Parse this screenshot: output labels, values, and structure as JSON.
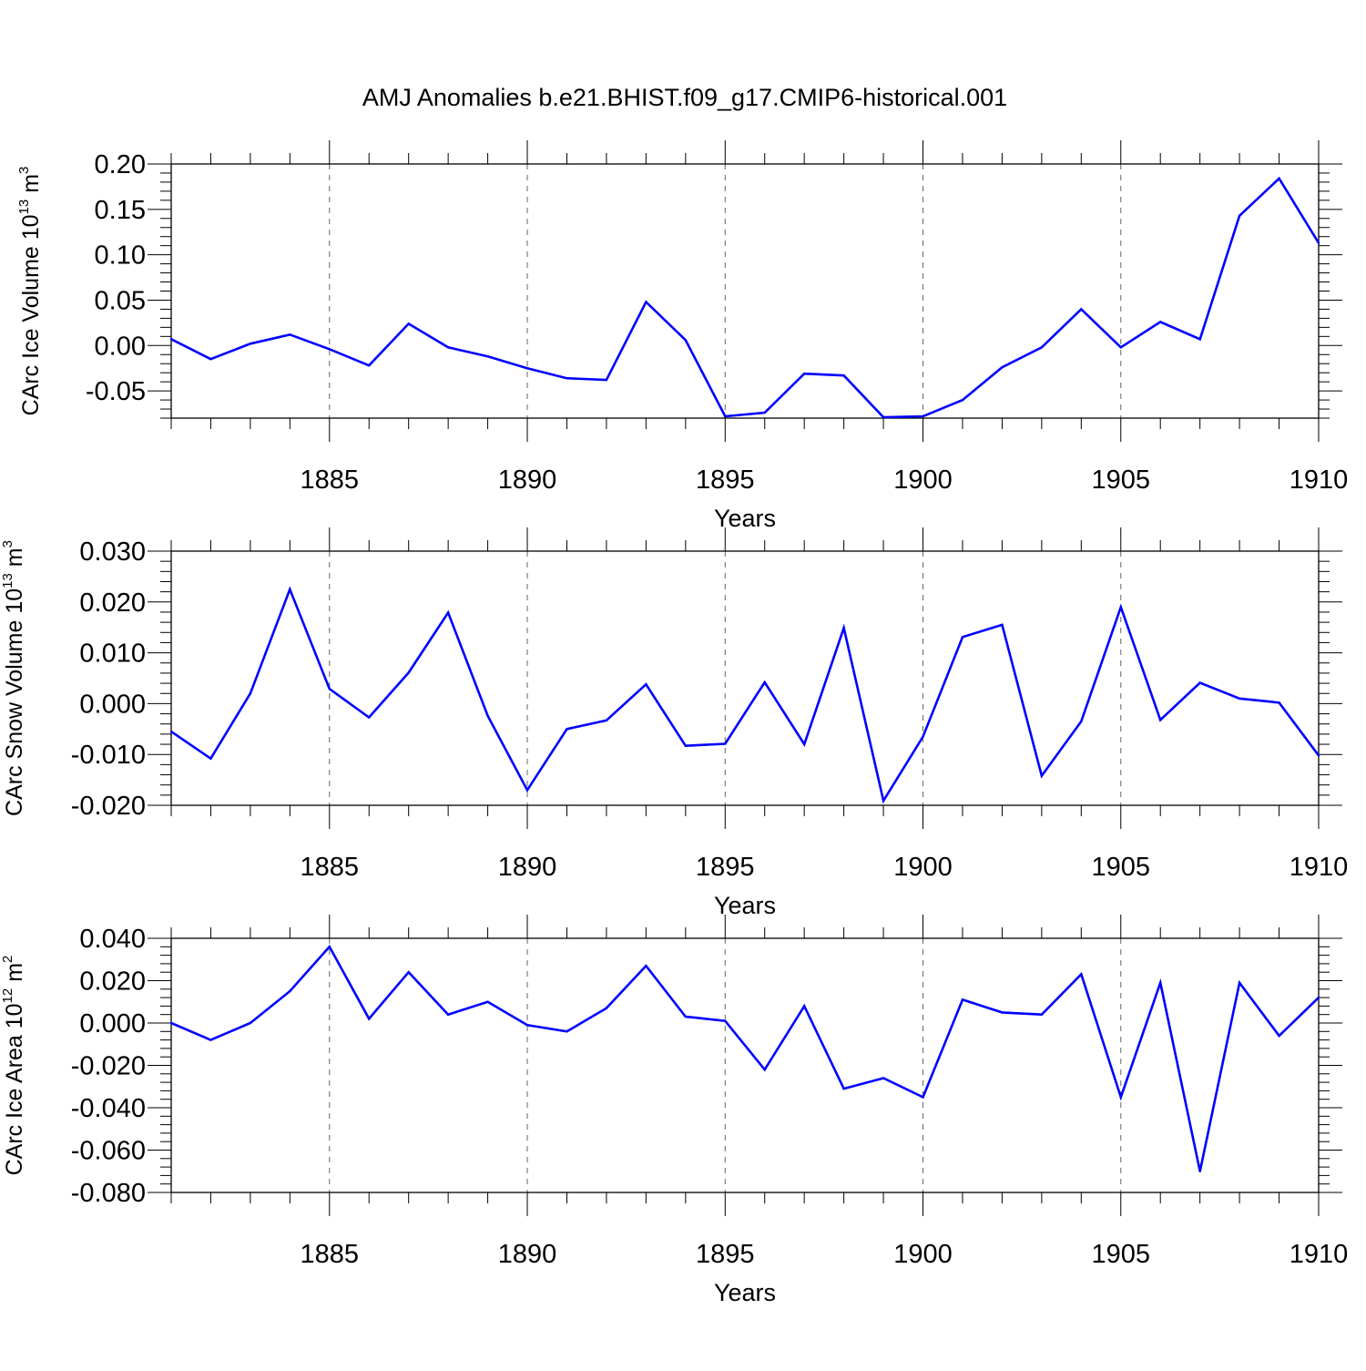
{
  "title": "AMJ Anomalies b.e21.BHIST.f09_g17.CMIP6-historical.001",
  "line_color": "#0000ff",
  "chart_data": [
    {
      "type": "line",
      "title": "AMJ Anomalies b.e21.BHIST.f09_g17.CMIP6-historical.001",
      "xlabel": "Years",
      "ylabel": "CArc Ice Volume 10",
      "ylabel_exp": "13",
      "ylabel_unit": " m",
      "ylabel_unit_exp": "3",
      "xlim": [
        1881,
        1910
      ],
      "ylim": [
        -0.08,
        0.2
      ],
      "yticks": [
        -0.05,
        0.0,
        0.05,
        0.1,
        0.15,
        0.2
      ],
      "ytick_labels": [
        "-0.05",
        "0.00",
        "0.05",
        "0.10",
        "0.15",
        "0.20"
      ],
      "xticks": [
        1885,
        1890,
        1895,
        1900,
        1905,
        1910
      ],
      "xtick_labels": [
        "1885",
        "1890",
        "1895",
        "1900",
        "1905",
        "1910"
      ],
      "grid": "vertical dashed at major x ticks",
      "x": [
        1881,
        1882,
        1883,
        1884,
        1885,
        1886,
        1887,
        1888,
        1889,
        1890,
        1891,
        1892,
        1893,
        1894,
        1895,
        1896,
        1897,
        1898,
        1899,
        1900,
        1901,
        1902,
        1903,
        1904,
        1905,
        1906,
        1907,
        1908,
        1909,
        1910
      ],
      "values": [
        0.007,
        -0.015,
        0.002,
        0.012,
        -0.004,
        -0.022,
        0.024,
        -0.002,
        -0.012,
        -0.025,
        -0.036,
        -0.038,
        0.048,
        0.006,
        -0.078,
        -0.074,
        -0.031,
        -0.033,
        -0.079,
        -0.078,
        -0.06,
        -0.024,
        -0.002,
        0.04,
        -0.002,
        0.026,
        0.007,
        0.143,
        0.184,
        0.113
      ]
    },
    {
      "type": "line",
      "xlabel": "Years",
      "ylabel": "CArc Snow Volume 10",
      "ylabel_exp": "13",
      "ylabel_unit": " m",
      "ylabel_unit_exp": "3",
      "xlim": [
        1881,
        1910
      ],
      "ylim": [
        -0.02,
        0.03
      ],
      "yticks": [
        -0.02,
        -0.01,
        0.0,
        0.01,
        0.02,
        0.03
      ],
      "ytick_labels": [
        "-0.020",
        "-0.010",
        "0.000",
        "0.010",
        "0.020",
        "0.030"
      ],
      "xticks": [
        1885,
        1890,
        1895,
        1900,
        1905,
        1910
      ],
      "xtick_labels": [
        "1885",
        "1890",
        "1895",
        "1900",
        "1905",
        "1910"
      ],
      "grid": "vertical dashed at major x ticks",
      "x": [
        1881,
        1882,
        1883,
        1884,
        1885,
        1886,
        1887,
        1888,
        1889,
        1890,
        1891,
        1892,
        1893,
        1894,
        1895,
        1896,
        1897,
        1898,
        1899,
        1900,
        1901,
        1902,
        1903,
        1904,
        1905,
        1906,
        1907,
        1908,
        1909,
        1910
      ],
      "values": [
        -0.0055,
        -0.0108,
        0.002,
        0.0225,
        0.0029,
        -0.0027,
        0.0061,
        0.0179,
        -0.0024,
        -0.017,
        -0.005,
        -0.0033,
        0.0038,
        -0.0083,
        -0.0079,
        0.0042,
        -0.008,
        0.0149,
        -0.0191,
        -0.0065,
        0.0131,
        0.0155,
        -0.0142,
        -0.0035,
        0.019,
        -0.0032,
        0.0041,
        0.001,
        0.0002,
        -0.0102
      ]
    },
    {
      "type": "line",
      "xlabel": "Years",
      "ylabel": "CArc Ice Area 10",
      "ylabel_exp": "12",
      "ylabel_unit": " m",
      "ylabel_unit_exp": "2",
      "xlim": [
        1881,
        1910
      ],
      "ylim": [
        -0.08,
        0.04
      ],
      "yticks": [
        -0.08,
        -0.06,
        -0.04,
        -0.02,
        0.0,
        0.02,
        0.04
      ],
      "ytick_labels": [
        "-0.080",
        "-0.060",
        "-0.040",
        "-0.020",
        "0.000",
        "0.020",
        "0.040"
      ],
      "xticks": [
        1885,
        1890,
        1895,
        1900,
        1905,
        1910
      ],
      "xtick_labels": [
        "1885",
        "1890",
        "1895",
        "1900",
        "1905",
        "1910"
      ],
      "grid": "vertical dashed at major x ticks",
      "x": [
        1881,
        1882,
        1883,
        1884,
        1885,
        1886,
        1887,
        1888,
        1889,
        1890,
        1891,
        1892,
        1893,
        1894,
        1895,
        1896,
        1897,
        1898,
        1899,
        1900,
        1901,
        1902,
        1903,
        1904,
        1905,
        1906,
        1907,
        1908,
        1909,
        1910
      ],
      "values": [
        0.0,
        -0.008,
        0.0,
        0.015,
        0.036,
        0.002,
        0.024,
        0.004,
        0.01,
        -0.001,
        -0.004,
        0.007,
        0.027,
        0.003,
        0.001,
        -0.022,
        0.008,
        -0.031,
        -0.026,
        -0.035,
        0.011,
        0.005,
        0.004,
        0.023,
        -0.035,
        0.019,
        -0.07,
        0.019,
        -0.006,
        0.012
      ]
    }
  ]
}
